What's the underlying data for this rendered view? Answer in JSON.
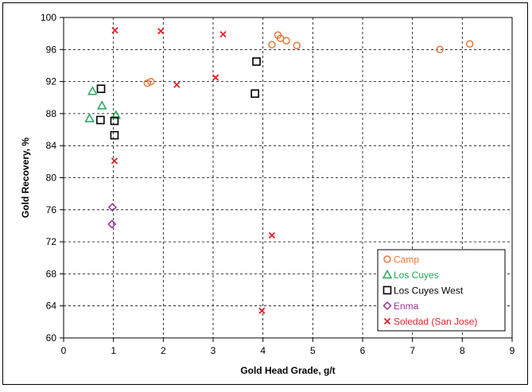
{
  "chart_data": {
    "type": "scatter",
    "title": "",
    "xlabel": "Gold Head Grade, g/t",
    "ylabel": "Gold Recovery, %",
    "xlim": [
      0,
      9
    ],
    "ylim": [
      60,
      100
    ],
    "xticks": [
      0,
      1,
      2,
      3,
      4,
      5,
      6,
      7,
      8,
      9
    ],
    "yticks": [
      60,
      64,
      68,
      72,
      76,
      80,
      84,
      88,
      92,
      96,
      100
    ],
    "grid": true,
    "legend_position": "bottom-right",
    "series": [
      {
        "name": "Camp",
        "marker": "circle",
        "color": "#E8773A",
        "points": [
          [
            1.68,
            91.8
          ],
          [
            1.75,
            92.0
          ],
          [
            4.18,
            96.6
          ],
          [
            4.3,
            97.8
          ],
          [
            4.35,
            97.4
          ],
          [
            4.47,
            97.1
          ],
          [
            4.68,
            96.5
          ],
          [
            7.55,
            96.0
          ],
          [
            8.15,
            96.7
          ]
        ]
      },
      {
        "name": "Los Cuyes",
        "marker": "triangle",
        "color": "#22A85A",
        "points": [
          [
            0.58,
            90.8
          ],
          [
            0.77,
            89.0
          ],
          [
            1.05,
            87.8
          ],
          [
            0.52,
            87.4
          ]
        ]
      },
      {
        "name": "Los Cuyes West",
        "marker": "square",
        "color": "#000000",
        "points": [
          [
            0.75,
            91.1
          ],
          [
            0.74,
            87.2
          ],
          [
            1.02,
            87.1
          ],
          [
            1.02,
            85.3
          ],
          [
            3.87,
            94.5
          ],
          [
            3.84,
            90.5
          ]
        ]
      },
      {
        "name": "Enma",
        "marker": "diamond",
        "color": "#A0309A",
        "points": [
          [
            0.98,
            76.3
          ],
          [
            0.97,
            74.2
          ]
        ]
      },
      {
        "name": "Soledad (San Jose)",
        "marker": "x",
        "color": "#E8202A",
        "points": [
          [
            1.03,
            98.4
          ],
          [
            1.95,
            98.3
          ],
          [
            3.2,
            97.9
          ],
          [
            2.27,
            91.6
          ],
          [
            3.05,
            92.5
          ],
          [
            1.02,
            82.1
          ],
          [
            4.18,
            72.8
          ],
          [
            3.98,
            63.4
          ]
        ]
      }
    ]
  }
}
